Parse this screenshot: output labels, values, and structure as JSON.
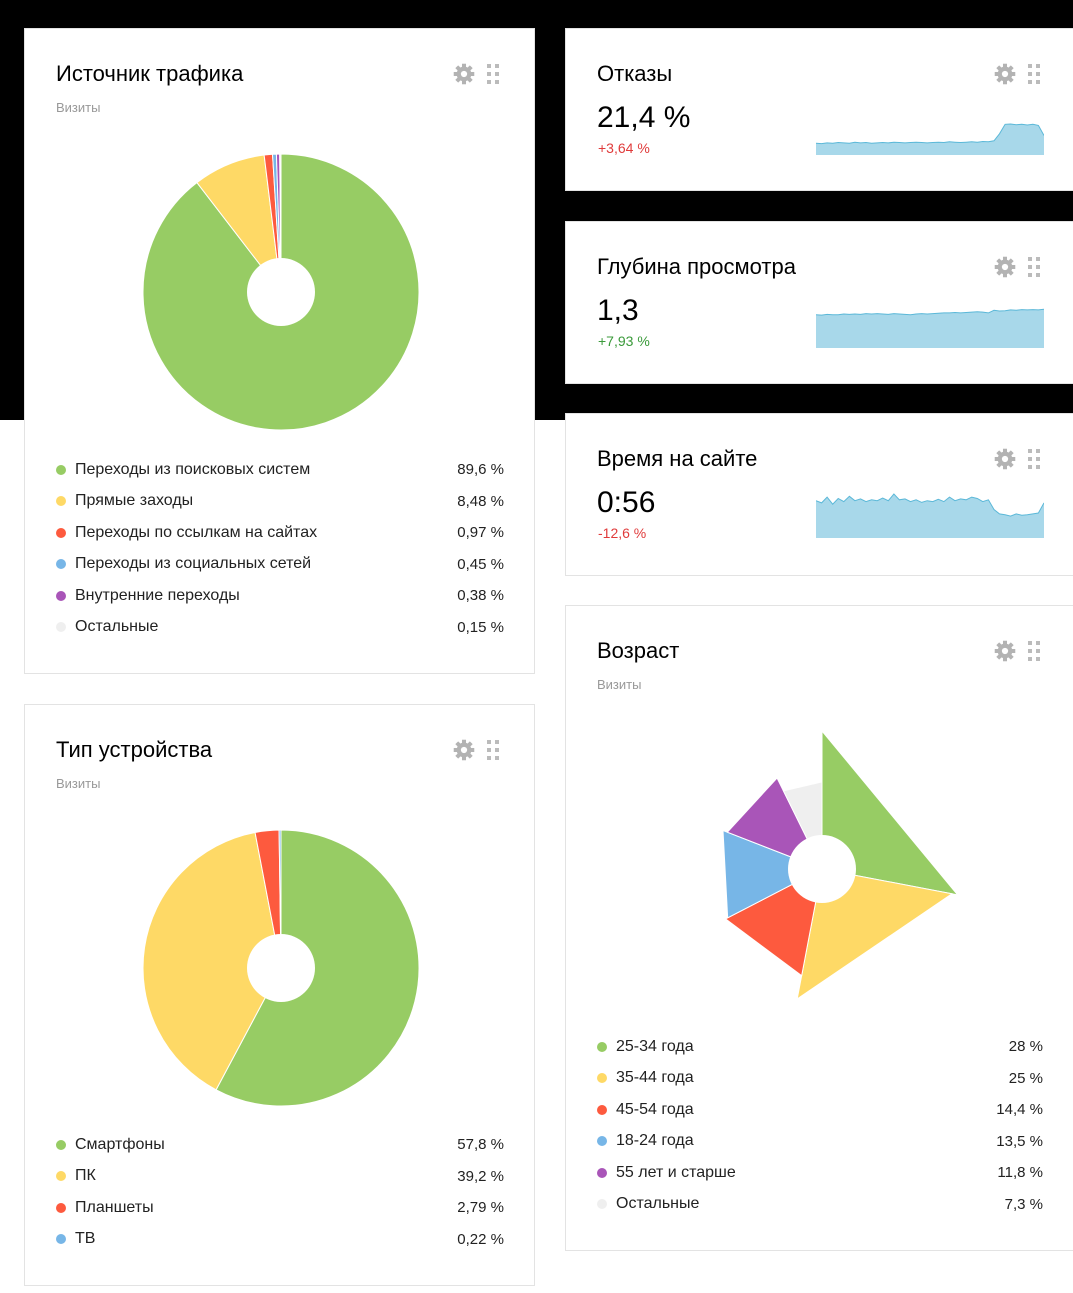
{
  "colors": {
    "green": "#97cc64",
    "yellow": "#fed966",
    "red": "#fd5a3e",
    "blue": "#77b6e7",
    "purple": "#a955b8",
    "light": "#efefef",
    "spark_fill": "#a8d8ea",
    "spark_line": "#5bb8d8",
    "negative": "#e03b3b",
    "positive": "#3a9a3a"
  },
  "icons": {
    "settings": "gear-icon",
    "drag": "drag-handle-icon"
  },
  "traffic": {
    "title": "Источник трафика",
    "subtitle": "Визиты",
    "chart_data": {
      "type": "pie",
      "series_name": "Визиты",
      "labels": [
        "Переходы из поисковых систем",
        "Прямые заходы",
        "Переходы по ссылкам на сайтах",
        "Переходы из социальных сетей",
        "Внутренние переходы",
        "Остальные"
      ],
      "values": [
        89.6,
        8.48,
        0.97,
        0.45,
        0.38,
        0.15
      ],
      "value_labels": [
        "89,6 %",
        "8,48 %",
        "0,97 %",
        "0,45 %",
        "0,38 %",
        "0,15 %"
      ],
      "colors": [
        "#97cc64",
        "#fed966",
        "#fd5a3e",
        "#77b6e7",
        "#a955b8",
        "#efefef"
      ]
    }
  },
  "bounce": {
    "title": "Отказы",
    "value": "21,4 %",
    "delta": "+3,64 %",
    "delta_type": "negative",
    "spark": [
      0.28,
      0.27,
      0.29,
      0.28,
      0.3,
      0.29,
      0.28,
      0.31,
      0.29,
      0.3,
      0.28,
      0.29,
      0.3,
      0.29,
      0.31,
      0.3,
      0.29,
      0.3,
      0.31,
      0.3,
      0.29,
      0.3,
      0.31,
      0.3,
      0.32,
      0.31,
      0.3,
      0.31,
      0.32,
      0.31,
      0.33,
      0.32,
      0.35,
      0.55,
      0.82,
      0.83,
      0.81,
      0.82,
      0.8,
      0.82,
      0.79,
      0.5
    ]
  },
  "depth": {
    "title": "Глубина просмотра",
    "value": "1,3",
    "delta": "+7,93 %",
    "delta_type": "positive",
    "spark": [
      0.85,
      0.84,
      0.86,
      0.85,
      0.85,
      0.87,
      0.86,
      0.87,
      0.86,
      0.88,
      0.87,
      0.88,
      0.87,
      0.86,
      0.88,
      0.87,
      0.86,
      0.85,
      0.87,
      0.88,
      0.87,
      0.88,
      0.89,
      0.9,
      0.9,
      0.91,
      0.9,
      0.91,
      0.92,
      0.93,
      0.92,
      0.9,
      0.97,
      0.95,
      0.96,
      0.98,
      0.97,
      0.99,
      0.98,
      0.99,
      0.98,
      1.0
    ]
  },
  "time": {
    "title": "Время на сайте",
    "value": "0:56",
    "delta": "-12,6 %",
    "delta_type": "negative",
    "spark": [
      0.8,
      0.75,
      0.88,
      0.72,
      0.85,
      0.78,
      0.9,
      0.8,
      0.84,
      0.78,
      0.82,
      0.8,
      0.86,
      0.8,
      0.95,
      0.82,
      0.84,
      0.78,
      0.82,
      0.76,
      0.8,
      0.78,
      0.83,
      0.78,
      0.88,
      0.8,
      0.84,
      0.82,
      0.88,
      0.85,
      0.78,
      0.82,
      0.6,
      0.5,
      0.48,
      0.45,
      0.5,
      0.47,
      0.48,
      0.5,
      0.52,
      0.75
    ]
  },
  "device": {
    "title": "Тип устройства",
    "subtitle": "Визиты",
    "chart_data": {
      "type": "pie",
      "series_name": "Визиты",
      "labels": [
        "Смартфоны",
        "ПК",
        "Планшеты",
        "ТВ"
      ],
      "values": [
        57.8,
        39.2,
        2.79,
        0.22
      ],
      "value_labels": [
        "57,8 %",
        "39,2 %",
        "2,79 %",
        "0,22 %"
      ],
      "colors": [
        "#97cc64",
        "#fed966",
        "#fd5a3e",
        "#77b6e7"
      ]
    }
  },
  "age": {
    "title": "Возраст",
    "subtitle": "Визиты",
    "chart_data": {
      "type": "pie",
      "series_name": "Визиты",
      "labels": [
        "25-34 года",
        "35-44 года",
        "45-54 года",
        "18-24 года",
        "55 лет и старше",
        "Остальные"
      ],
      "values": [
        28,
        25,
        14.4,
        13.5,
        11.8,
        7.3
      ],
      "value_labels": [
        "28 %",
        "25 %",
        "14,4 %",
        "13,5 %",
        "11,8 %",
        "7,3 %"
      ],
      "colors": [
        "#97cc64",
        "#fed966",
        "#fd5a3e",
        "#77b6e7",
        "#a955b8",
        "#efefef"
      ]
    }
  }
}
